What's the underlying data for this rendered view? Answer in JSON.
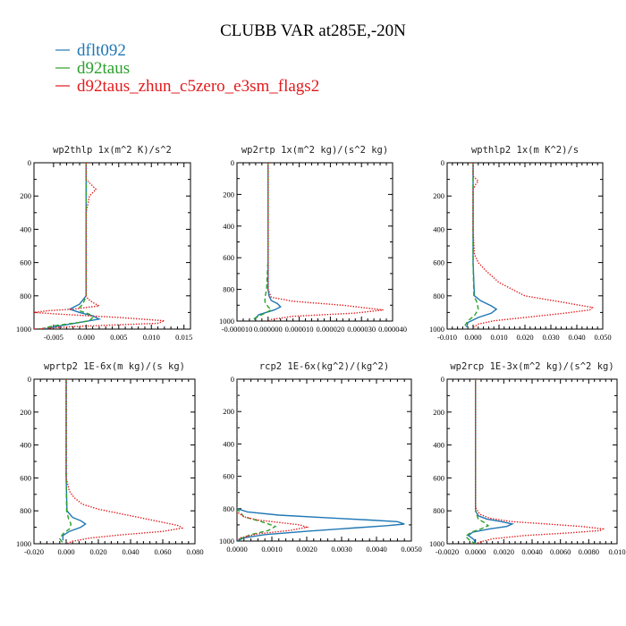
{
  "figure": {
    "title": "CLUBB VAR at285E,-20N",
    "legend": [
      {
        "label": "dflt092",
        "color": "#1f77b4",
        "dash": "solid"
      },
      {
        "label": "d92taus",
        "color": "#2ca02c",
        "dash": "dashed"
      },
      {
        "label": "d92taus_zhun_c5zero_e3sm_flags2",
        "color": "#e31a1c",
        "dash": "dotted"
      }
    ]
  },
  "chart_data": [
    {
      "type": "line",
      "title": "wp2thlp  1x(m^2 K)/s^2",
      "ylim": [
        0,
        1000
      ],
      "y_inverted": true,
      "xlim": [
        -0.008,
        0.016
      ],
      "xticks": [
        -0.005,
        0,
        0.005,
        0.01,
        0.015
      ],
      "xtick_labels": [
        "-0.005",
        "0.000",
        "0.005",
        "0.010",
        "0.015"
      ],
      "yticks": [
        0,
        200,
        400,
        600,
        800,
        1000
      ],
      "ytick_labels": [
        "0",
        "200",
        "400",
        "600",
        "800",
        "1000"
      ],
      "series": [
        {
          "name": "dflt092",
          "x": [
            0,
            0,
            0,
            0,
            0,
            0,
            -0.001,
            -0.002,
            -0.0025,
            -0.001,
            0.001,
            0.002,
            -0.001,
            -0.004,
            -0.0065
          ],
          "y": [
            0,
            100,
            200,
            400,
            600,
            800,
            850,
            870,
            880,
            900,
            920,
            940,
            960,
            980,
            1000
          ]
        },
        {
          "name": "d92taus",
          "x": [
            0,
            0,
            0,
            0,
            0,
            0,
            -0.0005,
            -0.001,
            -0.001,
            0.0005,
            0.001,
            0.0005,
            -0.002,
            -0.005,
            -0.007
          ],
          "y": [
            0,
            100,
            200,
            400,
            600,
            800,
            850,
            870,
            890,
            910,
            930,
            950,
            965,
            980,
            1000
          ]
        },
        {
          "name": "d92taus_zhun_c5zero_e3sm_flags2",
          "x": [
            0,
            0,
            0.001,
            0.0015,
            0.0005,
            0,
            0,
            0,
            0.0003,
            0.001,
            0.002,
            -0.002,
            -0.006,
            -0.008,
            -0.004,
            0.005,
            0.012,
            0.011,
            -0.002,
            -0.008
          ],
          "y": [
            0,
            100,
            140,
            160,
            200,
            300,
            600,
            800,
            820,
            840,
            860,
            880,
            890,
            900,
            910,
            930,
            950,
            965,
            985,
            1000
          ]
        }
      ]
    },
    {
      "type": "line",
      "title": "wp2rtp  1x(m^2 kg)/(s^2 kg)",
      "ylim": [
        0,
        1000
      ],
      "y_inverted": true,
      "xlim": [
        -1e-05,
        4e-05
      ],
      "xticks": [
        -1e-05,
        0,
        1e-05,
        2e-05,
        3e-05,
        4e-05
      ],
      "xtick_labels": [
        "-0.000010",
        "0.000000",
        "0.000010",
        "0.000020",
        "0.000030",
        "0.000040"
      ],
      "series": [
        {
          "name": "dflt092",
          "x": [
            0,
            0,
            0,
            0,
            0,
            3e-07,
            1e-06,
            3e-06,
            4e-06,
            2e-06,
            -3e-06,
            -4.5e-06
          ],
          "y": [
            0,
            200,
            400,
            600,
            800,
            840,
            870,
            890,
            910,
            930,
            960,
            990
          ]
        },
        {
          "name": "d92taus",
          "x": [
            0,
            0,
            0,
            0,
            -5e-07,
            -1e-06,
            -1e-06,
            0,
            1e-06,
            -2e-06,
            -5e-06
          ],
          "y": [
            0,
            200,
            400,
            600,
            800,
            850,
            880,
            910,
            930,
            960,
            990
          ]
        },
        {
          "name": "d92taus_zhun_c5zero_e3sm_flags2",
          "x": [
            0,
            0,
            0,
            0,
            0,
            1e-06,
            8e-06,
            2.4e-05,
            3.7e-05,
            2.8e-05,
            8e-06,
            1e-06,
            0
          ],
          "y": [
            0,
            200,
            400,
            600,
            800,
            850,
            875,
            900,
            930,
            950,
            970,
            990,
            1000
          ]
        }
      ]
    },
    {
      "type": "line",
      "title": "wpthlp2  1x(m K^2)/s",
      "ylim": [
        0,
        1000
      ],
      "y_inverted": true,
      "xlim": [
        -0.01,
        0.05
      ],
      "xticks": [
        -0.01,
        0,
        0.01,
        0.02,
        0.03,
        0.04,
        0.05
      ],
      "xtick_labels": [
        "-0.010",
        "0.000",
        "0.010",
        "0.020",
        "0.030",
        "0.040",
        "0.050"
      ],
      "series": [
        {
          "name": "dflt092",
          "x": [
            0,
            0,
            0,
            0,
            0.0005,
            0.003,
            0.007,
            0.009,
            0.007,
            0.002,
            -0.002,
            -0.0025
          ],
          "y": [
            0,
            200,
            400,
            600,
            800,
            830,
            860,
            880,
            905,
            930,
            960,
            990
          ]
        },
        {
          "name": "d92taus",
          "x": [
            0,
            0,
            0,
            0,
            0.0003,
            0.0015,
            0.002,
            0.0005,
            -0.002,
            -0.003,
            -0.002
          ],
          "y": [
            0,
            200,
            400,
            600,
            800,
            840,
            880,
            920,
            950,
            975,
            995
          ]
        },
        {
          "name": "d92taus_zhun_c5zero_e3sm_flags2",
          "x": [
            0,
            0,
            0.002,
            0.001,
            0,
            0,
            0.0005,
            0.002,
            0.005,
            0.01,
            0.02,
            0.035,
            0.046,
            0.045,
            0.035,
            0.02,
            0.008,
            0.002,
            0
          ],
          "y": [
            0,
            80,
            110,
            130,
            160,
            400,
            550,
            600,
            650,
            720,
            800,
            840,
            870,
            885,
            905,
            930,
            950,
            970,
            990
          ]
        }
      ]
    },
    {
      "type": "line",
      "title": "wprtp2  1E-6x(m kg)/(s kg)",
      "ylim": [
        0,
        1000
      ],
      "y_inverted": true,
      "xlim": [
        -0.02,
        0.08
      ],
      "xticks": [
        -0.02,
        0,
        0.02,
        0.04,
        0.06,
        0.08
      ],
      "xtick_labels": [
        "-0.020",
        "0.000",
        "0.020",
        "0.040",
        "0.060",
        "0.080"
      ],
      "series": [
        {
          "name": "dflt092",
          "x": [
            0,
            0,
            0,
            0,
            0.0005,
            0.004,
            0.009,
            0.012,
            0.009,
            0.002,
            -0.002,
            -0.002
          ],
          "y": [
            0,
            200,
            400,
            600,
            800,
            840,
            860,
            880,
            900,
            925,
            950,
            980
          ]
        },
        {
          "name": "d92taus",
          "x": [
            0,
            0,
            0,
            0,
            0.0003,
            0.0015,
            0.003,
            0.002,
            -0.002,
            -0.004,
            -0.002
          ],
          "y": [
            0,
            200,
            400,
            600,
            800,
            850,
            880,
            910,
            940,
            970,
            995
          ]
        },
        {
          "name": "d92taus_zhun_c5zero_e3sm_flags2",
          "x": [
            0,
            0,
            0,
            0.002,
            0.005,
            0.01,
            0.02,
            0.035,
            0.055,
            0.07,
            0.072,
            0.06,
            0.035,
            0.015,
            0.004,
            0
          ],
          "y": [
            0,
            200,
            600,
            680,
            720,
            760,
            790,
            820,
            860,
            890,
            905,
            925,
            945,
            965,
            985,
            1000
          ]
        }
      ]
    },
    {
      "type": "line",
      "title": "rcp2  1E-6x(kg^2)/(kg^2)",
      "ylim": [
        0,
        1000
      ],
      "y_inverted": true,
      "xlim": [
        0,
        0.005
      ],
      "xticks": [
        0,
        0.001,
        0.002,
        0.003,
        0.004,
        0.005
      ],
      "xtick_labels": [
        "0.0000",
        "0.0010",
        "0.0020",
        "0.0030",
        "0.0040",
        "0.0050"
      ],
      "series": [
        {
          "name": "dflt092",
          "x": [
            0,
            0,
            0,
            0.0003,
            0.0012,
            0.0025,
            0.0038,
            0.0046,
            0.0048,
            0.0043,
            0.0033,
            0.002,
            0.0008,
            0.0002,
            0
          ],
          "y": [
            0,
            700,
            800,
            820,
            840,
            855,
            870,
            880,
            895,
            905,
            920,
            940,
            960,
            980,
            1000
          ]
        },
        {
          "name": "d92taus",
          "x": [
            0,
            0,
            0,
            0.0002,
            0.0007,
            0.0011,
            0.0009,
            0.0004,
            0.0001,
            0
          ],
          "y": [
            0,
            700,
            800,
            850,
            880,
            910,
            935,
            960,
            985,
            1000
          ]
        },
        {
          "name": "d92taus_zhun_c5zero_e3sm_flags2",
          "x": [
            0,
            0,
            0,
            0.0002,
            0.0006,
            0.0012,
            0.0018,
            0.002,
            0.0015,
            0.0006,
            0.0001,
            0
          ],
          "y": [
            0,
            700,
            820,
            850,
            870,
            885,
            900,
            915,
            935,
            955,
            980,
            1000
          ]
        }
      ]
    },
    {
      "type": "line",
      "title": "wp2rcp  1E-3x(m^2 kg)/(s^2 kg)",
      "ylim": [
        0,
        1000
      ],
      "y_inverted": true,
      "xlim": [
        -0.002,
        0.01
      ],
      "xticks": [
        -0.002,
        0,
        0.002,
        0.004,
        0.006,
        0.008,
        0.01
      ],
      "xtick_labels": [
        "-0.0020",
        "0.0000",
        "0.0020",
        "0.0040",
        "0.0060",
        "0.0080",
        "0.010"
      ],
      "series": [
        {
          "name": "dflt092",
          "x": [
            0,
            0,
            0,
            0.0002,
            0.0008,
            0.0018,
            0.0026,
            0.0022,
            0.001,
            -0.0002,
            -0.0005,
            -0.0001,
            0
          ],
          "y": [
            0,
            700,
            800,
            830,
            850,
            865,
            880,
            895,
            910,
            930,
            950,
            975,
            1000
          ]
        },
        {
          "name": "d92taus",
          "x": [
            0,
            0,
            0,
            0.0002,
            0.0006,
            0.0009,
            0.0004,
            -0.0003,
            -0.0007,
            -0.0004,
            0
          ],
          "y": [
            0,
            700,
            800,
            850,
            870,
            890,
            910,
            930,
            955,
            980,
            1000
          ]
        },
        {
          "name": "d92taus_zhun_c5zero_e3sm_flags2",
          "x": [
            0,
            0,
            0,
            0.0003,
            0.001,
            0.0025,
            0.005,
            0.0075,
            0.009,
            0.0088,
            0.0065,
            0.0035,
            0.0012,
            0.0003,
            0
          ],
          "y": [
            0,
            600,
            780,
            820,
            845,
            865,
            880,
            895,
            910,
            920,
            935,
            950,
            970,
            990,
            1000
          ]
        }
      ]
    }
  ]
}
